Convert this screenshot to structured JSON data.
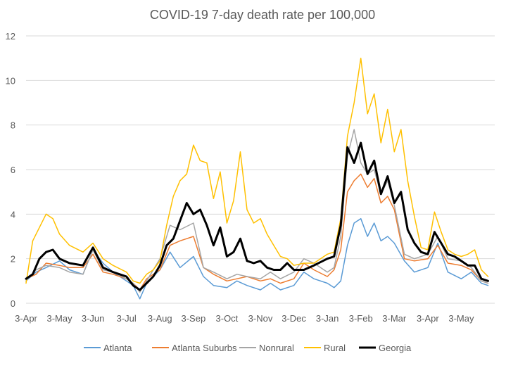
{
  "chart_data": {
    "type": "line",
    "title": "COVID-19 7-day death rate per 100,000",
    "xlabel": "",
    "ylabel": "",
    "ylim": [
      0,
      12
    ],
    "yticks": [
      0,
      2,
      4,
      6,
      8,
      10,
      12
    ],
    "grid": true,
    "legend_position": "bottom",
    "x_tick_labels": [
      "3-Apr",
      "3-May",
      "3-Jun",
      "3-Jul",
      "3-Aug",
      "3-Sep",
      "3-Oct",
      "3-Nov",
      "3-Dec",
      "3-Jan",
      "3-Feb",
      "3-Mar",
      "3-Apr",
      "3-May"
    ],
    "x_range": [
      0,
      14
    ],
    "series": [
      {
        "name": "Atlanta",
        "color": "#5b9bd5",
        "x": [
          0,
          0.3,
          0.6,
          1.0,
          1.3,
          1.7,
          2.0,
          2.3,
          2.6,
          3.0,
          3.2,
          3.4,
          3.6,
          4.0,
          4.3,
          4.6,
          5.0,
          5.3,
          5.6,
          6.0,
          6.3,
          6.6,
          7.0,
          7.3,
          7.6,
          8.0,
          8.3,
          8.6,
          9.0,
          9.2,
          9.4,
          9.6,
          9.8,
          10.0,
          10.2,
          10.4,
          10.6,
          10.8,
          11.0,
          11.3,
          11.6,
          12.0,
          12.3,
          12.6,
          13.0,
          13.3,
          13.6,
          13.8
        ],
        "values": [
          1.0,
          1.4,
          1.6,
          1.9,
          1.5,
          1.3,
          2.4,
          1.8,
          1.4,
          1.0,
          0.8,
          0.2,
          0.9,
          1.5,
          2.3,
          1.6,
          2.1,
          1.2,
          0.8,
          0.7,
          1.0,
          0.8,
          0.6,
          0.9,
          0.6,
          0.8,
          1.4,
          1.1,
          0.9,
          0.7,
          1.0,
          2.6,
          3.6,
          3.8,
          3.0,
          3.6,
          2.8,
          3.0,
          2.7,
          1.9,
          1.4,
          1.6,
          2.7,
          1.4,
          1.1,
          1.4,
          0.9,
          0.8
        ]
      },
      {
        "name": "Atlanta Suburbs",
        "color": "#ed7d31",
        "x": [
          0,
          0.3,
          0.6,
          1.0,
          1.3,
          1.7,
          2.0,
          2.3,
          2.6,
          3.0,
          3.2,
          3.4,
          3.6,
          4.0,
          4.3,
          4.6,
          5.0,
          5.3,
          5.6,
          6.0,
          6.3,
          6.6,
          7.0,
          7.3,
          7.6,
          8.0,
          8.3,
          8.6,
          9.0,
          9.2,
          9.4,
          9.6,
          9.8,
          10.0,
          10.2,
          10.4,
          10.6,
          10.8,
          11.0,
          11.3,
          11.6,
          12.0,
          12.3,
          12.6,
          13.0,
          13.3,
          13.6,
          13.8
        ],
        "values": [
          1.1,
          1.3,
          1.8,
          1.7,
          1.6,
          1.6,
          2.2,
          1.4,
          1.3,
          1.1,
          0.9,
          0.6,
          1.1,
          1.5,
          2.6,
          2.8,
          3.0,
          1.6,
          1.3,
          1.0,
          1.1,
          1.2,
          1.0,
          1.1,
          0.9,
          1.1,
          1.8,
          1.5,
          1.2,
          1.5,
          2.4,
          5.0,
          5.5,
          5.8,
          5.2,
          5.6,
          4.5,
          4.8,
          4.2,
          2.0,
          1.9,
          2.0,
          2.6,
          1.8,
          1.7,
          1.5,
          1.0,
          0.9
        ]
      },
      {
        "name": "Nonrural",
        "color": "#a5a5a5",
        "x": [
          0,
          0.3,
          0.6,
          1.0,
          1.3,
          1.7,
          2.0,
          2.3,
          2.6,
          3.0,
          3.2,
          3.4,
          3.6,
          4.0,
          4.3,
          4.6,
          5.0,
          5.3,
          5.6,
          6.0,
          6.3,
          6.6,
          7.0,
          7.3,
          7.6,
          8.0,
          8.3,
          8.6,
          9.0,
          9.2,
          9.4,
          9.6,
          9.8,
          10.0,
          10.2,
          10.4,
          10.6,
          10.8,
          11.0,
          11.3,
          11.6,
          12.0,
          12.3,
          12.6,
          13.0,
          13.3,
          13.6,
          13.8
        ],
        "values": [
          1.0,
          1.5,
          1.7,
          1.6,
          1.4,
          1.3,
          2.4,
          1.5,
          1.4,
          1.1,
          0.9,
          0.5,
          1.0,
          2.0,
          3.5,
          3.3,
          3.6,
          1.6,
          1.4,
          1.1,
          1.3,
          1.2,
          1.1,
          1.4,
          1.1,
          1.4,
          2.0,
          1.8,
          1.4,
          1.6,
          3.0,
          6.6,
          7.8,
          6.3,
          5.8,
          6.0,
          4.9,
          5.5,
          4.4,
          2.2,
          2.0,
          2.2,
          3.0,
          2.0,
          1.9,
          1.6,
          1.0,
          0.9
        ]
      },
      {
        "name": "Rural",
        "color": "#ffc000",
        "x": [
          0,
          0.2,
          0.4,
          0.6,
          0.8,
          1.0,
          1.3,
          1.7,
          2.0,
          2.3,
          2.6,
          3.0,
          3.2,
          3.4,
          3.6,
          3.8,
          4.0,
          4.2,
          4.4,
          4.6,
          4.8,
          5.0,
          5.2,
          5.4,
          5.6,
          5.8,
          6.0,
          6.2,
          6.4,
          6.6,
          6.8,
          7.0,
          7.2,
          7.4,
          7.6,
          7.8,
          8.0,
          8.3,
          8.6,
          9.0,
          9.2,
          9.4,
          9.6,
          9.8,
          10.0,
          10.2,
          10.4,
          10.6,
          10.8,
          11.0,
          11.2,
          11.4,
          11.6,
          11.8,
          12.0,
          12.2,
          12.4,
          12.6,
          12.8,
          13.0,
          13.2,
          13.4,
          13.6,
          13.8
        ],
        "values": [
          0.9,
          2.8,
          3.4,
          4.0,
          3.8,
          3.1,
          2.6,
          2.3,
          2.7,
          2.0,
          1.7,
          1.4,
          1.0,
          0.9,
          1.3,
          1.5,
          1.9,
          3.5,
          4.8,
          5.5,
          5.8,
          7.1,
          6.4,
          6.3,
          4.7,
          5.9,
          3.6,
          4.6,
          6.8,
          4.2,
          3.6,
          3.8,
          3.1,
          2.6,
          2.1,
          2.0,
          1.7,
          1.8,
          1.8,
          2.2,
          2.3,
          3.8,
          7.5,
          9.0,
          11.0,
          8.5,
          9.4,
          7.2,
          8.7,
          6.8,
          7.8,
          5.5,
          3.9,
          2.5,
          2.4,
          4.1,
          3.2,
          2.4,
          2.2,
          2.1,
          2.2,
          2.4,
          1.5,
          1.2
        ]
      },
      {
        "name": "Georgia",
        "color": "#000000",
        "x": [
          0,
          0.2,
          0.4,
          0.6,
          0.8,
          1.0,
          1.3,
          1.7,
          2.0,
          2.3,
          2.6,
          3.0,
          3.2,
          3.4,
          3.6,
          3.8,
          4.0,
          4.2,
          4.4,
          4.6,
          4.8,
          5.0,
          5.2,
          5.4,
          5.6,
          5.8,
          6.0,
          6.2,
          6.4,
          6.6,
          6.8,
          7.0,
          7.2,
          7.4,
          7.6,
          7.8,
          8.0,
          8.3,
          8.6,
          9.0,
          9.2,
          9.4,
          9.6,
          9.8,
          10.0,
          10.2,
          10.4,
          10.6,
          10.8,
          11.0,
          11.2,
          11.4,
          11.6,
          11.8,
          12.0,
          12.2,
          12.4,
          12.6,
          12.8,
          13.0,
          13.2,
          13.4,
          13.6,
          13.8
        ],
        "values": [
          1.1,
          1.3,
          2.0,
          2.3,
          2.4,
          2.0,
          1.8,
          1.7,
          2.5,
          1.6,
          1.4,
          1.2,
          0.8,
          0.6,
          0.9,
          1.2,
          1.7,
          2.6,
          2.9,
          3.7,
          4.5,
          4.0,
          4.2,
          3.5,
          2.6,
          3.4,
          2.1,
          2.3,
          2.9,
          1.9,
          1.8,
          1.9,
          1.6,
          1.5,
          1.5,
          1.8,
          1.5,
          1.5,
          1.7,
          2.0,
          2.1,
          3.5,
          7.0,
          6.3,
          7.2,
          5.8,
          6.4,
          4.9,
          5.7,
          4.5,
          5.0,
          3.3,
          2.7,
          2.3,
          2.2,
          3.2,
          2.7,
          2.2,
          2.1,
          1.9,
          1.7,
          1.7,
          1.1,
          1.0
        ]
      }
    ]
  }
}
